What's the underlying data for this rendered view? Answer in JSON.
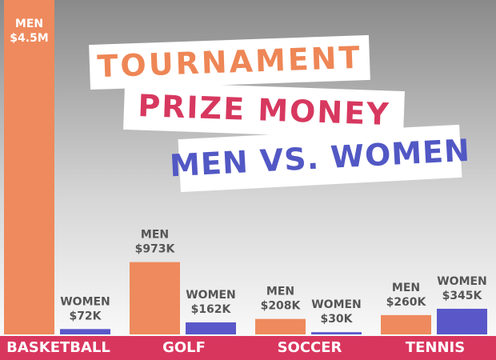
{
  "chart_data": {
    "type": "bar",
    "title_lines": [
      "TOURNAMENT",
      "PRIZE MONEY",
      "MEN VS. WOMEN"
    ],
    "categories": [
      "BASKETBALL",
      "GOLF",
      "SOCCER",
      "TENNIS"
    ],
    "series": [
      {
        "name": "MEN",
        "color": "#ee8a5d",
        "values": [
          4500000,
          973000,
          208000,
          260000
        ],
        "value_labels": [
          "$4.5M",
          "$973K",
          "$208K",
          "$260K"
        ]
      },
      {
        "name": "WOMEN",
        "color": "#5a58c9",
        "values": [
          72000,
          162000,
          30000,
          345000
        ],
        "value_labels": [
          "$72K",
          "$162K",
          "$30K",
          "$345K"
        ]
      }
    ],
    "ylim": [
      0,
      4500000
    ]
  }
}
